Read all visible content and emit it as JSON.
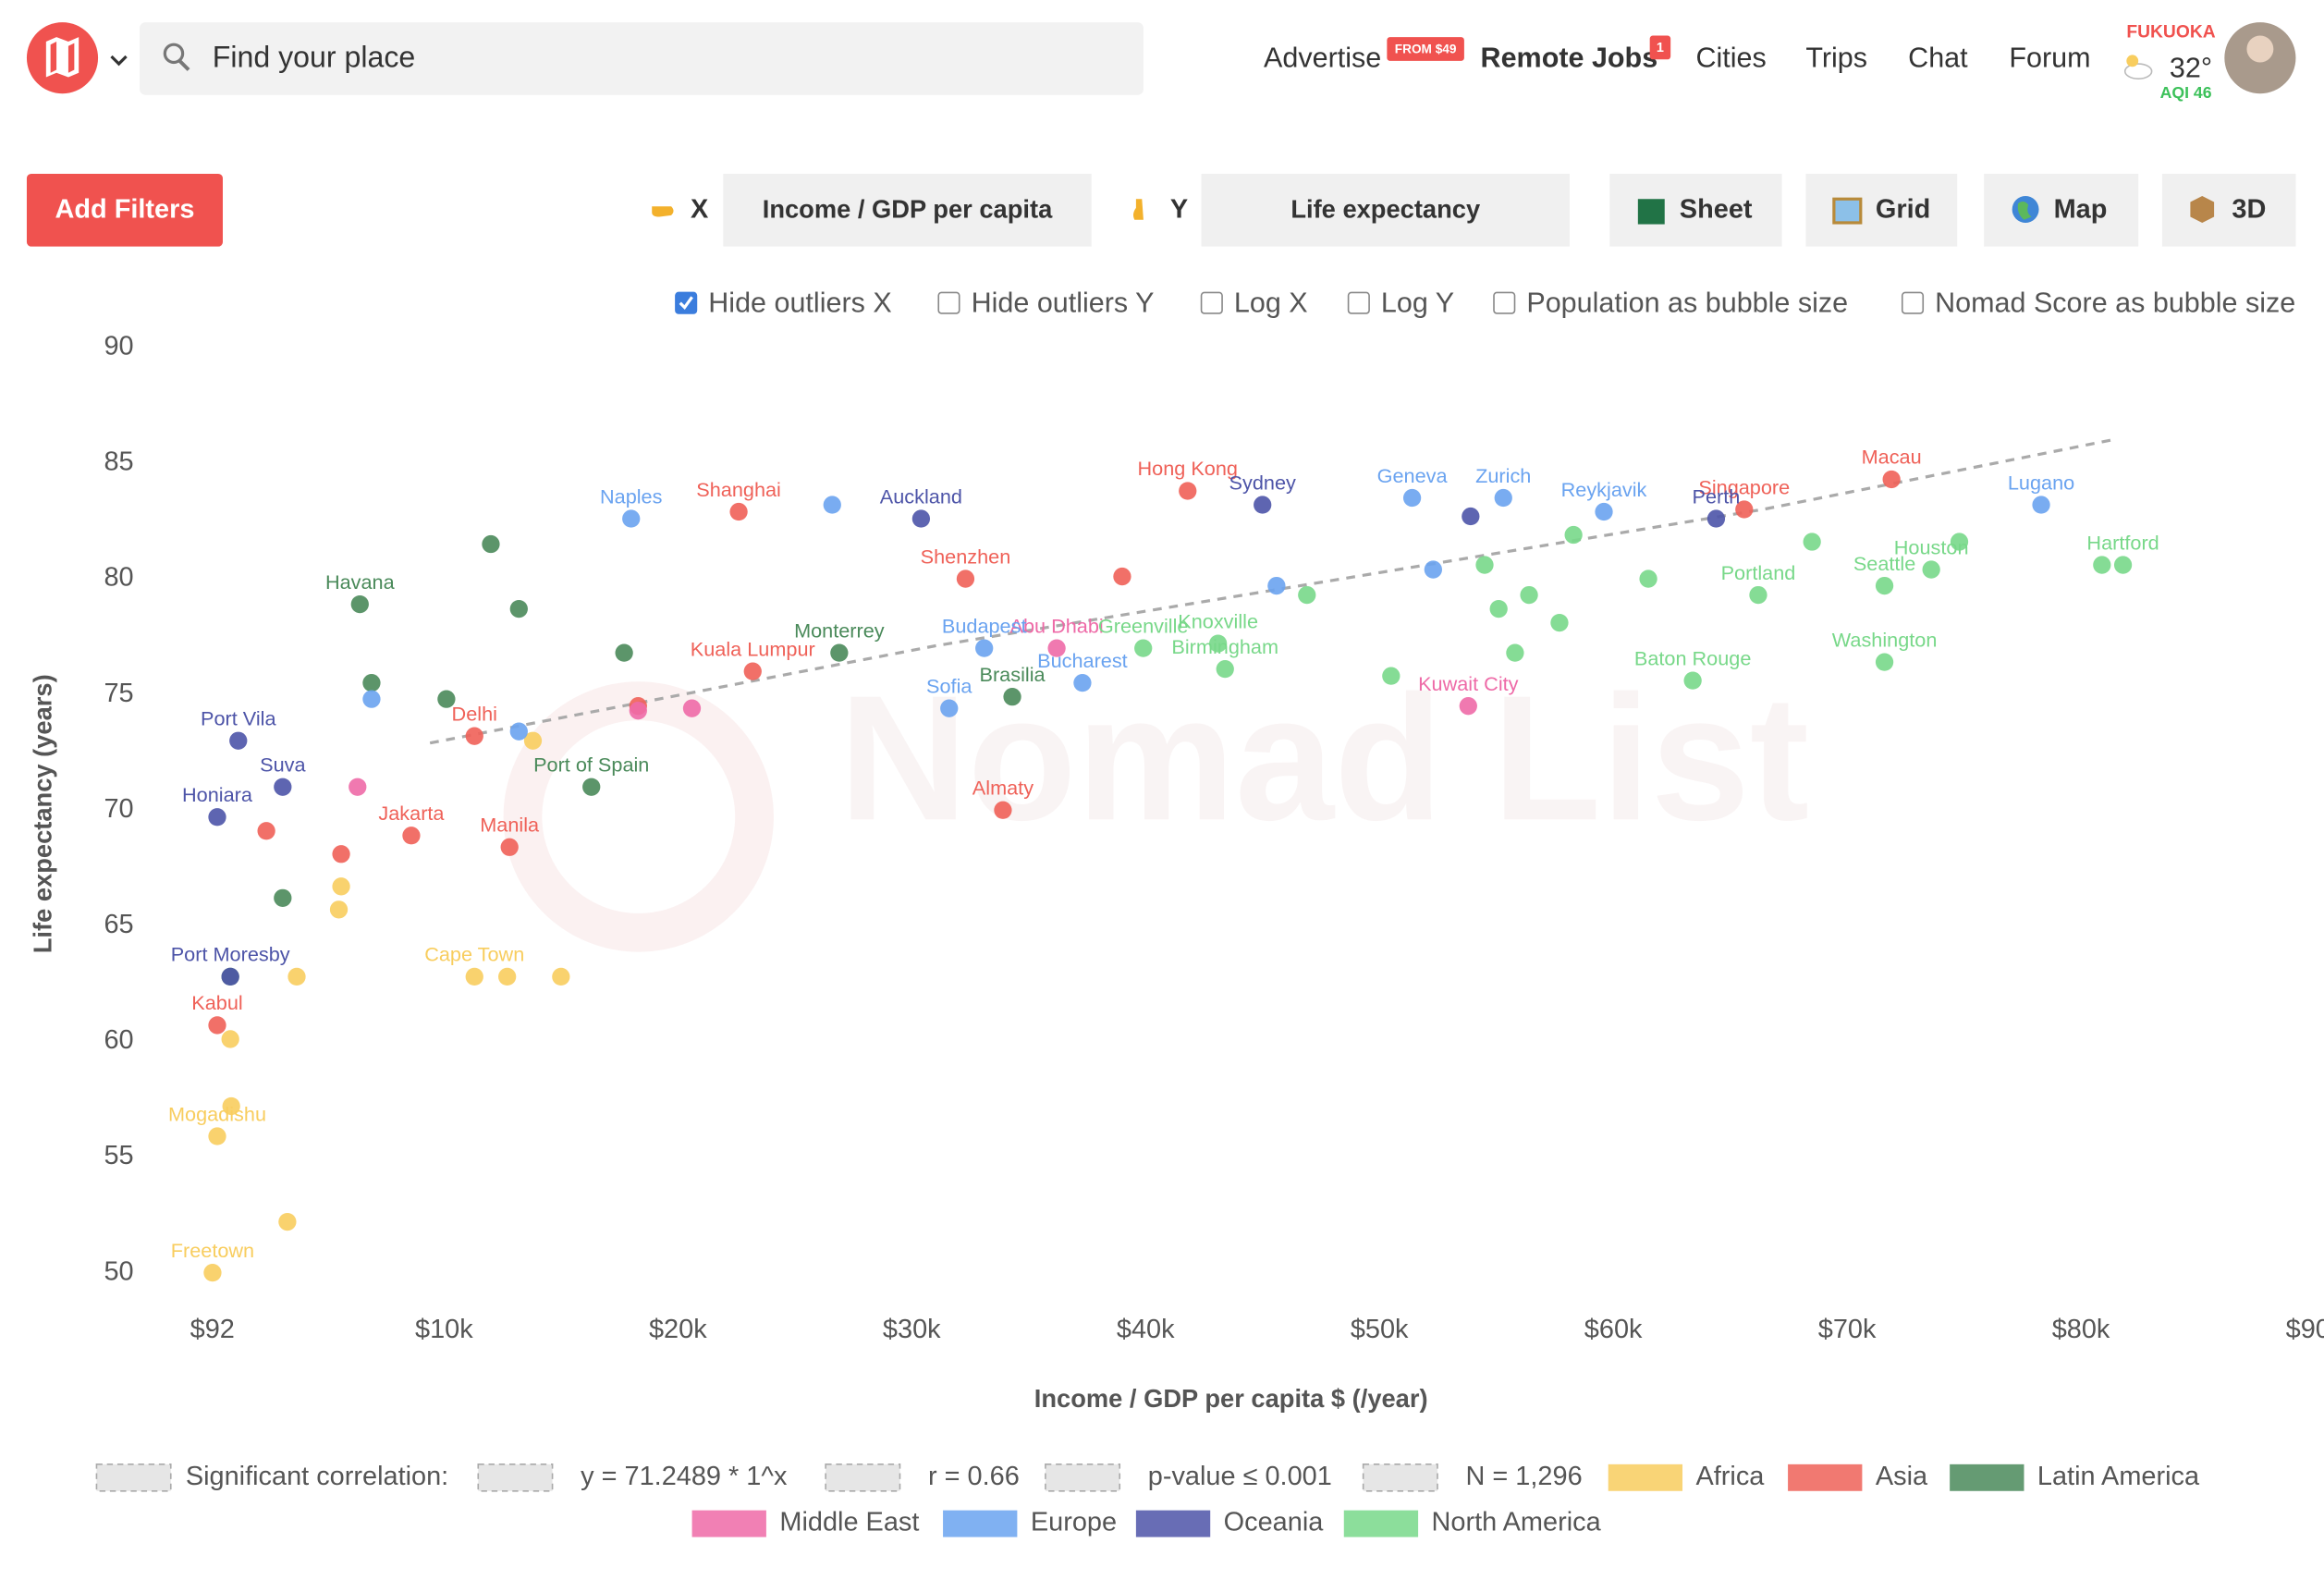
{
  "header": {
    "search_placeholder": "Find your place",
    "nav": [
      "Advertise",
      "Remote Jobs",
      "Cities",
      "Trips",
      "Chat",
      "Forum"
    ],
    "advertise_badge": "FROM $49",
    "jobs_badge": "1",
    "weather": {
      "city": "FUKUOKA",
      "temperature": "32°",
      "aqi": "AQI 46"
    }
  },
  "controls": {
    "add_filters": "Add Filters",
    "x_label": "X",
    "x_value": "Income / GDP per capita",
    "y_label": "Y",
    "y_value": "Life expectancy",
    "buttons": [
      "Sheet",
      "Grid",
      "Map",
      "3D"
    ],
    "checkboxes": [
      {
        "label": "Hide outliers X",
        "checked": true
      },
      {
        "label": "Hide outliers Y",
        "checked": false
      },
      {
        "label": "Log X",
        "checked": false
      },
      {
        "label": "Log Y",
        "checked": false
      },
      {
        "label": "Population as bubble size",
        "checked": false
      },
      {
        "label": "Nomad Score as bubble size",
        "checked": false
      }
    ]
  },
  "watermark": "Nomad List",
  "chart_data": {
    "type": "scatter",
    "x_label": "Income / GDP per capita $ (/year)",
    "y_label": "Life expectancy (years)",
    "xlim": [
      -1000,
      90000
    ],
    "ylim": [
      50,
      90
    ],
    "xticks": [
      {
        "value": 92,
        "label": "$92"
      },
      {
        "value": 10000,
        "label": "$10k"
      },
      {
        "value": 20000,
        "label": "$20k"
      },
      {
        "value": 30000,
        "label": "$30k"
      },
      {
        "value": 40000,
        "label": "$40k"
      },
      {
        "value": 50000,
        "label": "$50k"
      },
      {
        "value": 60000,
        "label": "$60k"
      },
      {
        "value": 70000,
        "label": "$70k"
      },
      {
        "value": 80000,
        "label": "$80k"
      },
      {
        "value": 90000,
        "label": "$90k"
      }
    ],
    "yticks": [
      50,
      55,
      60,
      65,
      70,
      75,
      80,
      85,
      90
    ],
    "grid": false,
    "trendline": {
      "x": [
        9400,
        31000,
        66400,
        81300
      ],
      "y": [
        72.9,
        77.1,
        83.0,
        86.0
      ]
    },
    "correlation": {
      "label": "Significant correlation:",
      "equation": "y = 71.2489 * 1^x",
      "r": "r = 0.66",
      "p_value": "p-value ≤ 0.001",
      "n": "N = 1,296"
    },
    "series": [
      {
        "name": "Africa",
        "color": "#f8cd5e",
        "x": [
          100,
          300,
          3300,
          900,
          3700,
          11300,
          12700,
          15000,
          5500,
          860,
          13800,
          5600
        ],
        "values": [
          50,
          55.9,
          52.2,
          57.2,
          62.8,
          62.8,
          62.8,
          62.8,
          65.7,
          60.1,
          73.0,
          66.7
        ],
        "labels": [
          "Freetown",
          "Mogadishu",
          null,
          null,
          null,
          "Cape Town",
          null,
          null,
          null,
          null,
          null,
          null
        ]
      },
      {
        "name": "Asia",
        "color": "#ef6158",
        "x": [
          71900,
          65600,
          41800,
          33900,
          12800,
          22600,
          8600,
          11300,
          300,
          32300,
          23200,
          5600,
          2400,
          39000,
          18300
        ],
        "values": [
          84.3,
          83.0,
          83.8,
          70.0,
          68.4,
          82.9,
          68.9,
          73.2,
          60.7,
          80.0,
          76.0,
          68.1,
          69.1,
          80.1,
          74.5
        ],
        "labels": [
          "Macau",
          "Singapore",
          "Hong Kong",
          "Almaty",
          "Manila",
          "Shanghai",
          "Jakarta",
          "Delhi",
          "Kabul",
          "Shenzhen",
          "Kuala Lumpur",
          null,
          null,
          null,
          null
        ]
      },
      {
        "name": "Latin America",
        "color": "#4a8a5a",
        "x": [
          6400,
          16300,
          26900,
          34300,
          12000,
          3100,
          860,
          10100,
          13200,
          17700,
          6900
        ],
        "values": [
          78.9,
          71.0,
          76.8,
          74.9,
          81.5,
          66.2,
          62.8,
          74.8,
          78.7,
          76.8,
          75.5
        ],
        "labels": [
          "Havana",
          "Port of Spain",
          "Monterrey",
          "Brasilia",
          null,
          null,
          null,
          null,
          null,
          null,
          null
        ]
      },
      {
        "name": "Middle East",
        "color": "#ee6aa7",
        "x": [
          53800,
          36200,
          18300,
          20600,
          6300
        ],
        "values": [
          74.5,
          77.0,
          74.3,
          74.4,
          71.0
        ],
        "labels": [
          "Kuwait City",
          "Abu Dhabi",
          null,
          null,
          null
        ]
      },
      {
        "name": "Europe",
        "color": "#6aa3f0",
        "x": [
          59600,
          55300,
          51400,
          18000,
          31600,
          37300,
          33100,
          78300,
          52300,
          45600,
          6900,
          13200,
          26600
        ],
        "values": [
          82.9,
          83.5,
          83.5,
          82.6,
          74.4,
          75.5,
          77.0,
          83.2,
          80.4,
          79.7,
          74.8,
          73.4,
          83.2
        ],
        "labels": [
          "Reykjavik",
          "Zurich",
          "Geneva",
          "Naples",
          "Sofia",
          "Bucharest",
          "Budapest",
          "Lugano",
          null,
          null,
          null,
          null,
          null
        ]
      },
      {
        "name": "Oceania",
        "color": "#4d54a8",
        "x": [
          45000,
          30400,
          64400,
          300,
          1200,
          860,
          3100,
          53900
        ],
        "values": [
          83.2,
          82.6,
          82.6,
          69.7,
          73.0,
          62.8,
          71.0,
          82.7
        ],
        "labels": [
          "Sydney",
          "Auckland",
          "Perth",
          "Honiara",
          "Port Vila",
          "Port Moresby",
          "Suva",
          null
        ]
      },
      {
        "name": "North America",
        "color": "#78d889",
        "x": [
          71600,
          73600,
          81800,
          63400,
          71600,
          66200,
          43400,
          43100,
          39900,
          54500,
          56400,
          57700,
          55800,
          58300,
          55100,
          50500,
          46900,
          61500,
          68500,
          74800,
          80900
        ],
        "values": [
          76.4,
          80.4,
          80.6,
          75.6,
          79.7,
          79.3,
          76.1,
          77.2,
          77.0,
          80.6,
          79.3,
          78.1,
          76.8,
          81.9,
          78.7,
          75.8,
          79.3,
          80.0,
          81.6,
          81.6,
          80.6
        ],
        "labels": [
          "Washington",
          "Houston",
          "Hartford",
          "Baton Rouge",
          "Seattle",
          "Portland",
          "Birmingham",
          "Knoxville",
          "Greenville",
          null,
          null,
          null,
          null,
          null,
          null,
          null,
          null,
          null,
          null,
          null,
          null
        ]
      }
    ]
  }
}
